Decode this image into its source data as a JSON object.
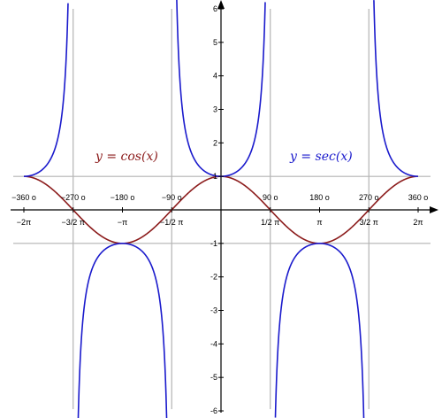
{
  "chart_data": {
    "type": "line",
    "title": "",
    "xlabel": "",
    "ylabel": "",
    "xlim": [
      -6.2832,
      6.2832
    ],
    "ylim": [
      -6,
      6
    ],
    "y_ticks": [
      "-6",
      "-5",
      "-4",
      "-3",
      "-2",
      "-1",
      "1",
      "2",
      "3",
      "4",
      "5",
      "6"
    ],
    "y_tick_values": [
      -6,
      -5,
      -4,
      -3,
      -2,
      -1,
      1,
      2,
      3,
      4,
      5,
      6
    ],
    "x_ticks_radians": [
      "−2π",
      "−3/2 π",
      "−π",
      "−1/2 π",
      "1/2 π",
      "π",
      "3/2 π",
      "2π"
    ],
    "x_ticks_degrees": [
      "−360 o",
      "−270 o",
      "−180 o",
      "−90 o",
      "90 o",
      "180 o",
      "270 o",
      "360 o"
    ],
    "x_tick_values": [
      -6.2832,
      -4.7124,
      -3.1416,
      -1.5708,
      1.5708,
      3.1416,
      4.7124,
      6.2832
    ],
    "reference_lines": {
      "horizontal_y": [
        1,
        -1
      ],
      "vertical_x": [
        -4.7124,
        -1.5708,
        1.5708,
        4.7124
      ]
    },
    "series": [
      {
        "name": "y = cos(x)",
        "function": "cos",
        "color": "#8b1a1a"
      },
      {
        "name": "y = sec(x)",
        "function": "sec",
        "color": "#1a1acc"
      }
    ],
    "grid": false,
    "legend": "inline labels above curves"
  }
}
